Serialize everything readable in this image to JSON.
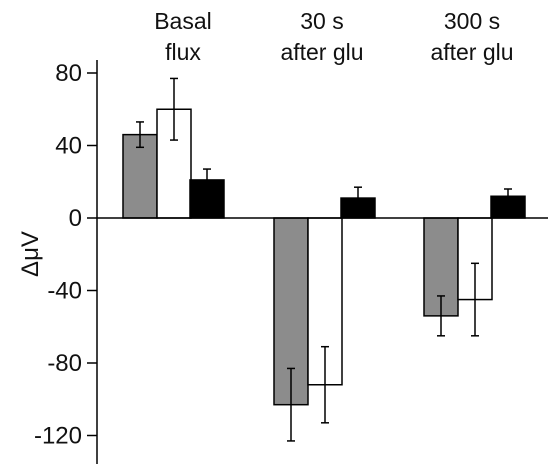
{
  "chart_data": {
    "type": "bar",
    "ylabel": "ΔμV",
    "ylim": [
      -130,
      85
    ],
    "yticks": [
      80,
      40,
      0,
      -40,
      -80,
      -120
    ],
    "ytick_labels": [
      "80",
      "40",
      "0",
      "-40",
      "-80",
      "-120"
    ],
    "grid": false,
    "legend": "none",
    "categories": [
      {
        "line1": "Basal",
        "line2": "flux"
      },
      {
        "line1": "30 s",
        "line2": "after glu"
      },
      {
        "line1": "300 s",
        "line2": "after glu"
      }
    ],
    "series": [
      {
        "color": "#8c8c8c",
        "values": [
          46,
          -103,
          -54
        ],
        "errors": [
          7,
          20,
          11
        ]
      },
      {
        "color": "#ffffff",
        "values": [
          60,
          -92,
          -45
        ],
        "errors": [
          17,
          21,
          20
        ]
      },
      {
        "color": "#000000",
        "values": [
          21,
          11,
          12
        ],
        "errors": [
          6,
          6,
          4
        ]
      }
    ]
  }
}
